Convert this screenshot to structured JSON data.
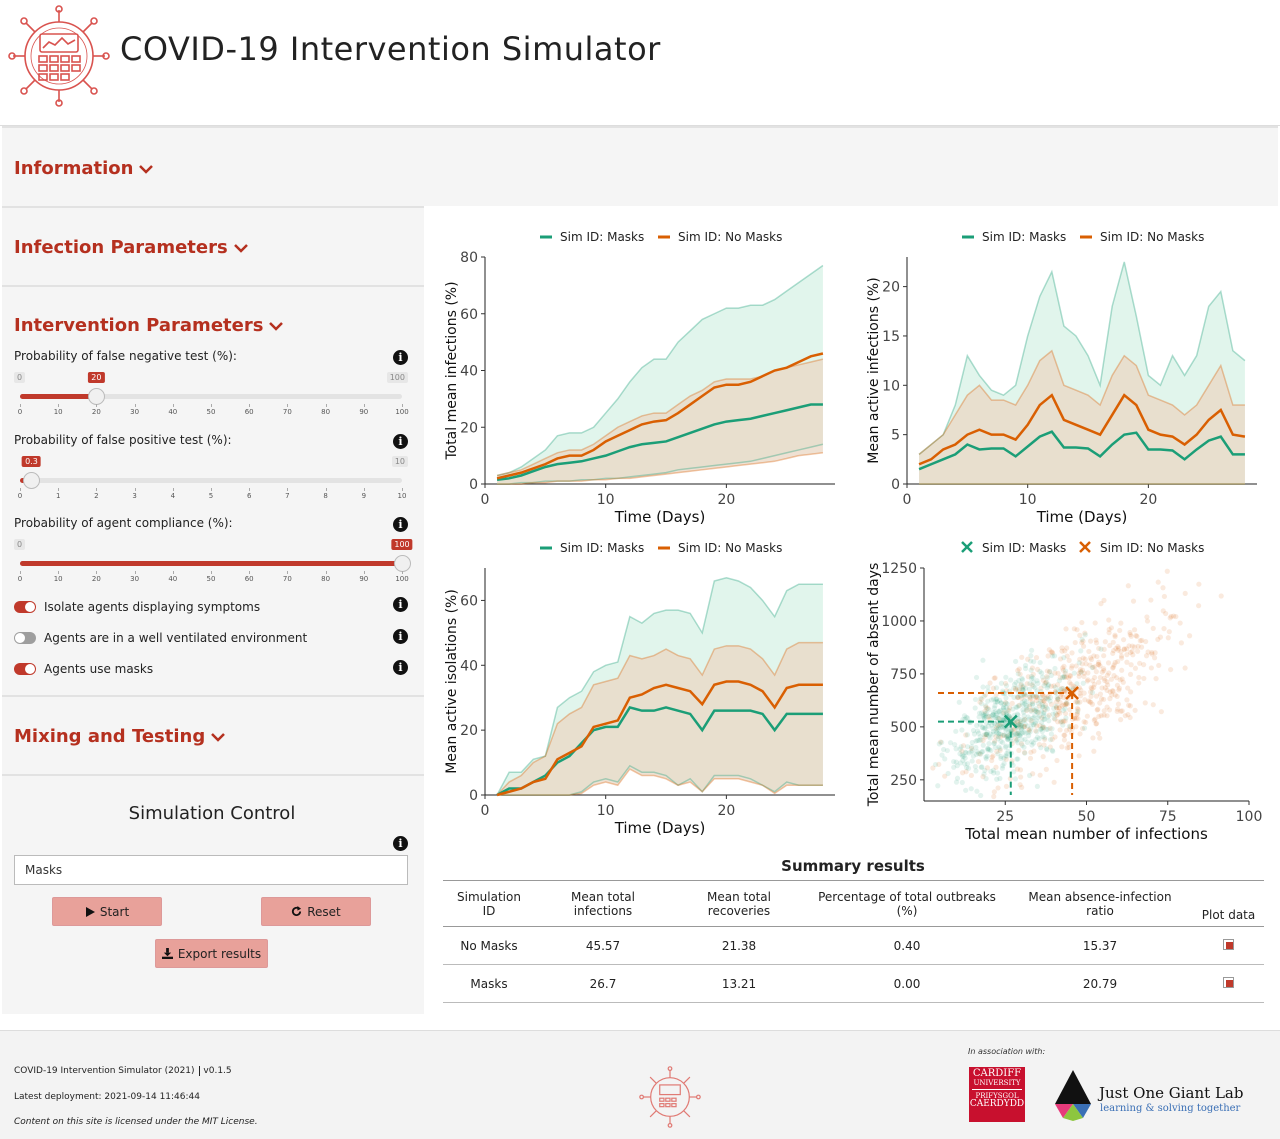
{
  "app": {
    "title": "COVID-19 Intervention Simulator"
  },
  "sections": {
    "information": "Information",
    "infection": "Infection Parameters",
    "intervention": "Intervention Parameters",
    "mixing": "Mixing and Testing"
  },
  "intervention": {
    "false_negative": {
      "label": "Probability of false negative test (%):",
      "min": "0",
      "max": "100",
      "value": "20",
      "value_num": 20,
      "min_num": 0,
      "max_num": 100,
      "ticks": [
        "0",
        "10",
        "20",
        "30",
        "40",
        "50",
        "60",
        "70",
        "80",
        "90",
        "100"
      ]
    },
    "false_positive": {
      "label": "Probability of false positive test (%):",
      "min": "0",
      "max": "10",
      "value": "0.3",
      "value_num": 0.3,
      "min_num": 0,
      "max_num": 10,
      "ticks": [
        "0",
        "1",
        "2",
        "3",
        "4",
        "5",
        "6",
        "7",
        "8",
        "9",
        "10"
      ]
    },
    "compliance": {
      "label": "Probability of agent compliance (%):",
      "min": "0",
      "max": "100",
      "value": "100",
      "value_num": 100,
      "min_num": 0,
      "max_num": 100,
      "ticks": [
        "0",
        "10",
        "20",
        "30",
        "40",
        "50",
        "60",
        "70",
        "80",
        "90",
        "100"
      ]
    },
    "toggles": [
      {
        "label": "Isolate agents displaying symptoms",
        "on": true
      },
      {
        "label": "Agents are in a well ventilated environment",
        "on": false
      },
      {
        "label": "Agents use masks",
        "on": true
      }
    ]
  },
  "simulation": {
    "title": "Simulation Control",
    "input_value": "Masks",
    "start_label": "Start",
    "reset_label": "Reset",
    "export_label": "Export results"
  },
  "colors": {
    "masks": "#1b9e77",
    "nomasks": "#d95f02",
    "accent": "#c0392b"
  },
  "legend": {
    "masks": "Sim ID:  Masks",
    "nomasks": "Sim ID:  No Masks"
  },
  "chart_data": [
    {
      "type": "line",
      "xlabel": "Time (Days)",
      "ylabel": "Total mean infections (%)",
      "xlim": [
        0,
        29
      ],
      "ylim": [
        0,
        80
      ],
      "xticks": [
        "0",
        "10",
        "20"
      ],
      "yticks": [
        "0",
        "20",
        "40",
        "60",
        "80"
      ],
      "x": [
        1,
        2,
        3,
        4,
        5,
        6,
        7,
        8,
        9,
        10,
        11,
        12,
        13,
        14,
        15,
        16,
        17,
        18,
        19,
        20,
        21,
        22,
        23,
        24,
        25,
        26,
        27,
        28
      ],
      "series": [
        {
          "name": "Masks",
          "values": [
            1.5,
            2,
            3,
            4.5,
            6,
            7,
            7.5,
            8,
            9,
            10,
            11.5,
            13,
            14,
            14.5,
            15,
            16.5,
            18,
            19.5,
            21,
            22,
            22.5,
            23,
            24,
            25,
            26,
            27,
            28,
            28
          ],
          "upper": [
            3,
            4,
            6,
            9,
            12,
            17,
            18,
            18,
            20,
            25,
            30,
            36,
            41,
            44,
            44,
            50,
            54,
            58,
            60,
            62,
            62,
            63,
            63,
            65,
            68,
            71,
            74,
            77
          ],
          "lower": [
            0,
            0,
            0.5,
            0.5,
            1,
            1,
            1,
            1.5,
            1.5,
            2,
            2,
            2.5,
            3,
            3.5,
            4,
            5,
            5.5,
            6,
            6.5,
            7,
            7.5,
            8,
            9,
            10,
            11,
            12,
            13,
            14
          ]
        },
        {
          "name": "No Masks",
          "values": [
            2,
            3,
            4,
            5.5,
            7,
            9,
            10,
            10,
            12,
            15,
            17,
            19,
            21,
            22,
            22.5,
            25,
            28,
            31,
            34,
            35,
            35,
            36,
            38,
            40,
            41,
            43,
            45,
            46
          ],
          "upper": [
            3,
            4,
            5,
            7,
            9,
            11,
            12,
            12,
            14,
            17,
            20,
            22,
            24,
            25,
            25,
            28,
            31,
            33,
            36,
            37,
            37,
            37,
            38,
            40,
            41,
            42,
            43,
            44
          ],
          "lower": [
            0,
            0,
            0,
            0.5,
            0.5,
            1,
            1,
            1,
            1.5,
            1.5,
            2,
            2,
            2.5,
            3,
            3.5,
            4,
            4.5,
            5,
            5.5,
            6,
            6.5,
            7,
            7.5,
            8,
            9,
            10,
            10.5,
            11
          ]
        }
      ]
    },
    {
      "type": "line",
      "xlabel": "Time (Days)",
      "ylabel": "Mean active infections (%)",
      "xlim": [
        0,
        29
      ],
      "ylim": [
        0,
        23
      ],
      "xticks": [
        "0",
        "10",
        "20"
      ],
      "yticks": [
        "0",
        "5",
        "10",
        "15",
        "20"
      ],
      "x": [
        1,
        2,
        3,
        4,
        5,
        6,
        7,
        8,
        9,
        10,
        11,
        12,
        13,
        14,
        15,
        16,
        17,
        18,
        19,
        20,
        21,
        22,
        23,
        24,
        25,
        26,
        27,
        28
      ],
      "series": [
        {
          "name": "Masks",
          "values": [
            1.5,
            2,
            2.5,
            3,
            4,
            3.5,
            3.6,
            3.6,
            2.8,
            3.8,
            4.8,
            5.3,
            3.7,
            3.7,
            3.6,
            2.8,
            4,
            5,
            5.2,
            3.5,
            3.5,
            3.4,
            2.5,
            3.5,
            4.4,
            4.8,
            3,
            3
          ],
          "upper": [
            3,
            4,
            5,
            8,
            13,
            11,
            9.5,
            9,
            10,
            15,
            19,
            21.5,
            16,
            15,
            13,
            10,
            18,
            22.5,
            17,
            11,
            10,
            13,
            11,
            13,
            18,
            19.5,
            13.5,
            12.5
          ],
          "lower": [
            0,
            0,
            0,
            0,
            0,
            0,
            0,
            0,
            0,
            0,
            0,
            0,
            0,
            0,
            0,
            0,
            0,
            0,
            0,
            0,
            0,
            0,
            0,
            0,
            0,
            0,
            0,
            0
          ]
        },
        {
          "name": "No Masks",
          "values": [
            2,
            2.5,
            3.5,
            4,
            5,
            5.5,
            5,
            5,
            4.5,
            6,
            8,
            9,
            6.5,
            6,
            5.5,
            5,
            7,
            9,
            8,
            5.5,
            5,
            4.8,
            4,
            5,
            6.5,
            7.5,
            5,
            4.8
          ],
          "upper": [
            3,
            4,
            5,
            7,
            9,
            10,
            8.5,
            8.5,
            8,
            10,
            12.5,
            13.5,
            10,
            9.5,
            9,
            8,
            11,
            13,
            12,
            9,
            8.5,
            8,
            7,
            8,
            10,
            12,
            8,
            8
          ],
          "lower": [
            0,
            0,
            0,
            0,
            0,
            0,
            0,
            0,
            0,
            0,
            0,
            0,
            0,
            0,
            0,
            0,
            0,
            0,
            0,
            0,
            0,
            0,
            0,
            0,
            0,
            0,
            0,
            0
          ]
        }
      ]
    },
    {
      "type": "line",
      "xlabel": "Time (Days)",
      "ylabel": "Mean active isolations (%)",
      "xlim": [
        0,
        29
      ],
      "ylim": [
        0,
        70
      ],
      "xticks": [
        "0",
        "10",
        "20"
      ],
      "yticks": [
        "0",
        "20",
        "40",
        "60"
      ],
      "x": [
        1,
        2,
        3,
        4,
        5,
        6,
        7,
        8,
        9,
        10,
        11,
        12,
        13,
        14,
        15,
        16,
        17,
        18,
        19,
        20,
        21,
        22,
        23,
        24,
        25,
        26,
        27,
        28
      ],
      "series": [
        {
          "name": "Masks",
          "values": [
            0,
            2,
            2,
            4,
            6,
            10,
            12,
            16,
            20,
            21,
            21,
            27,
            26,
            26,
            27,
            26,
            25,
            20,
            26,
            26,
            26,
            26,
            25,
            20,
            25,
            25,
            25,
            25
          ],
          "upper": [
            0,
            7,
            7,
            11,
            12,
            27,
            30,
            32,
            38,
            40,
            41,
            55,
            53,
            56,
            57,
            57,
            56,
            50,
            66,
            67,
            66,
            64,
            60,
            55,
            63,
            65,
            65,
            65
          ],
          "lower": [
            0,
            0,
            0,
            0,
            0,
            0,
            0,
            1,
            4,
            5,
            4,
            9,
            7,
            7,
            6,
            3,
            5,
            1,
            6,
            6,
            6,
            5,
            3,
            1,
            4,
            3,
            3,
            3
          ]
        },
        {
          "name": "No Masks",
          "values": [
            0,
            1,
            2,
            4,
            5,
            11,
            13,
            15,
            21,
            22,
            23,
            30,
            31,
            33,
            34,
            33,
            32,
            28,
            34,
            35,
            35,
            34,
            32,
            27,
            33,
            34,
            34,
            34
          ],
          "upper": [
            0,
            4,
            6,
            10,
            12,
            22,
            25,
            27,
            34,
            35,
            36,
            43,
            42,
            43,
            45,
            43,
            42,
            37,
            45,
            46,
            46,
            45,
            42,
            37,
            45,
            47,
            47,
            47
          ],
          "lower": [
            0,
            0,
            0,
            0,
            0,
            0,
            0,
            0.5,
            3,
            4,
            3,
            8,
            6,
            6,
            5,
            3,
            4,
            1,
            5,
            5,
            5,
            4,
            3,
            0.5,
            3,
            3,
            3,
            3
          ]
        }
      ]
    },
    {
      "type": "scatter",
      "xlabel": "Total mean number of infections",
      "ylabel": "Total mean number of absent days",
      "xlim": [
        0,
        100
      ],
      "ylim": [
        150,
        1250
      ],
      "xticks": [
        "25",
        "50",
        "75",
        "100"
      ],
      "yticks": [
        "250",
        "500",
        "750",
        "1000",
        "1250"
      ],
      "series": [
        {
          "name": "Masks",
          "marker": "x",
          "mean": [
            26.7,
            525
          ]
        },
        {
          "name": "No Masks",
          "marker": "x",
          "mean": [
            45.57,
            660
          ]
        }
      ]
    }
  ],
  "summary": {
    "title": "Summary results",
    "headers": [
      "Simulation ID",
      "Mean total infections",
      "Mean total recoveries",
      "Percentage of total outbreaks (%)",
      "Mean absence-infection ratio",
      "Plot data"
    ],
    "rows": [
      [
        "No Masks",
        "45.57",
        "21.38",
        "0.40",
        "15.37"
      ],
      [
        "Masks",
        "26.7",
        "13.21",
        "0.00",
        "20.79"
      ]
    ]
  },
  "footer": {
    "line1": "COVID-19 Intervention Simulator (2021)",
    "version": "v0.1.5",
    "line2": "Latest deployment: 2021-09-14 11:46:44",
    "line3": "Content on this site is licensed under the MIT License.",
    "assoc": "In association with:",
    "cardiff_top": "CARDIFF",
    "cardiff_mid": "UNIVERSITY",
    "cardiff_w1": "PRIFYSGOL",
    "cardiff_w2": "CAERDYDD",
    "jogl_title": "Just One Giant Lab",
    "jogl_sub": "learning & solving together"
  }
}
